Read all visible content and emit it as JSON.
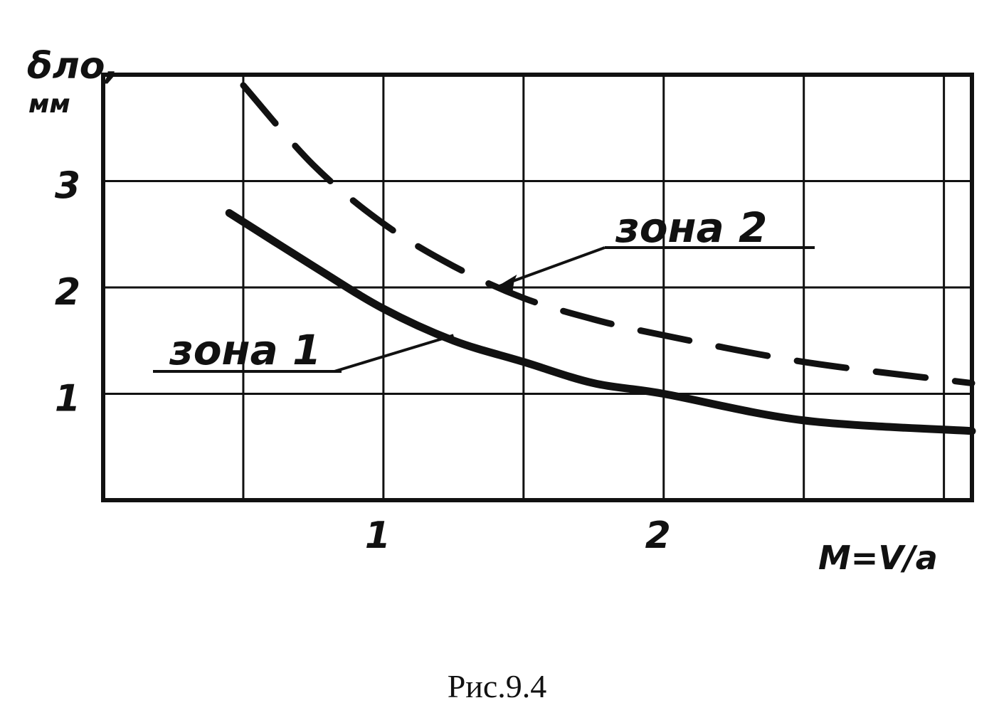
{
  "caption": "Рис.9.4",
  "chart_data": {
    "type": "line",
    "title": "",
    "ylabel": "δлo,",
    "yunit": "мм",
    "xlabel": "M=V/a",
    "xlim": [
      0,
      3.1
    ],
    "ylim": [
      0,
      4
    ],
    "grid": true,
    "x_gridlines": [
      0.5,
      1,
      1.5,
      2,
      2.5,
      3
    ],
    "y_gridlines": [
      1,
      2,
      3,
      4
    ],
    "x_ticks": [
      {
        "value": 1,
        "label": "1"
      },
      {
        "value": 2,
        "label": "2"
      }
    ],
    "y_ticks": [
      {
        "value": 1,
        "label": "1"
      },
      {
        "value": 2,
        "label": "2"
      },
      {
        "value": 3,
        "label": "3"
      }
    ],
    "series": [
      {
        "name": "зона 2",
        "style": "dashed",
        "x": [
          0.5,
          0.75,
          1.0,
          1.25,
          1.5,
          1.75,
          2.0,
          2.5,
          3.1
        ],
        "y": [
          3.9,
          3.15,
          2.6,
          2.2,
          1.9,
          1.7,
          1.55,
          1.3,
          1.1
        ]
      },
      {
        "name": "зона 1",
        "style": "solid",
        "x": [
          0.45,
          0.75,
          1.0,
          1.25,
          1.5,
          1.75,
          2.0,
          2.5,
          3.1
        ],
        "y": [
          2.7,
          2.2,
          1.8,
          1.5,
          1.3,
          1.1,
          1.0,
          0.75,
          0.65
        ]
      }
    ],
    "annotations": [
      {
        "text": "зона 2",
        "target_series": "зона 2",
        "x": 1.4,
        "y": 2.0
      },
      {
        "text": "зона 1",
        "target_series": "зона 1",
        "x": 1.25,
        "y": 1.55
      }
    ]
  }
}
